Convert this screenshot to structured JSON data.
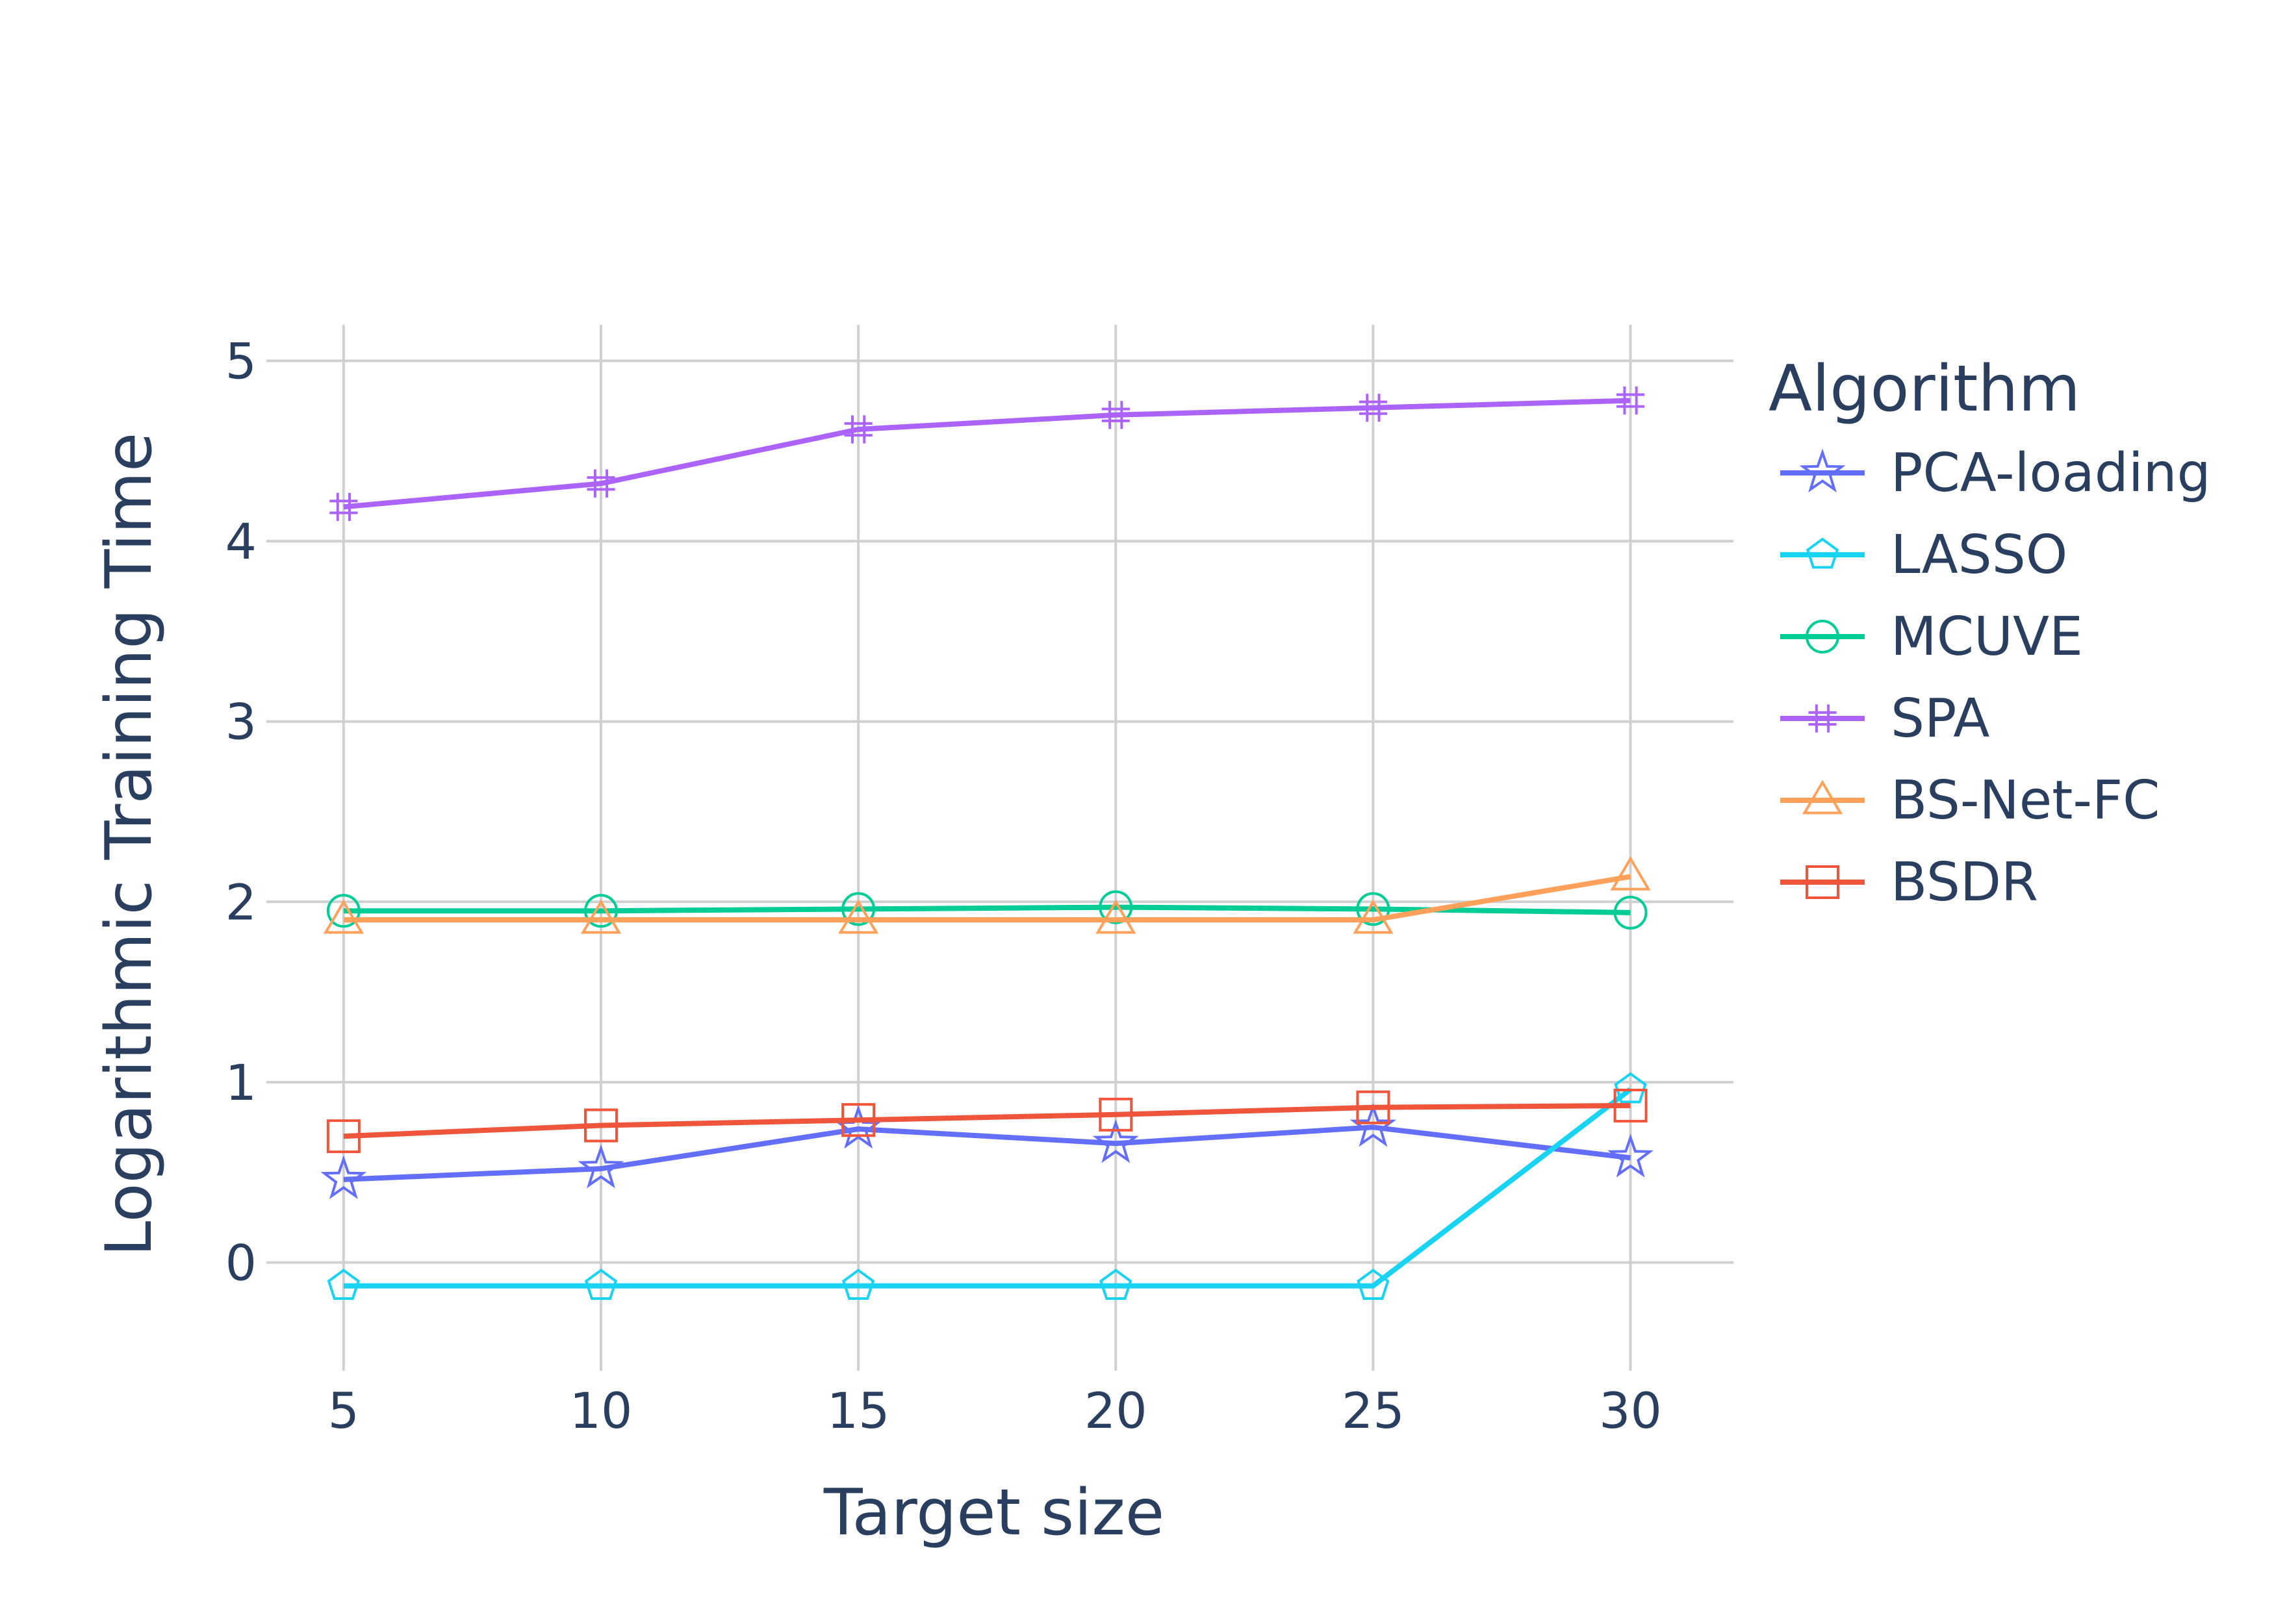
{
  "chart_data": {
    "type": "line",
    "title": "",
    "xlabel": "Target size",
    "ylabel": "Logarithmic Training Time",
    "x": [
      5,
      10,
      15,
      20,
      25,
      30
    ],
    "xticks": [
      "5",
      "10",
      "15",
      "20",
      "25",
      "30"
    ],
    "yticks": [
      "0",
      "1",
      "2",
      "3",
      "4",
      "5"
    ],
    "xlim": [
      3.5,
      32
    ],
    "ylim": [
      -0.6,
      5.2
    ],
    "grid": true,
    "legend": {
      "title": "Algorithm",
      "placement": "right"
    },
    "series": [
      {
        "name": "PCA-loading",
        "color": "#636efa",
        "marker": "star",
        "values": [
          0.46,
          0.52,
          0.74,
          0.66,
          0.75,
          0.58
        ]
      },
      {
        "name": "LASSO",
        "color": "#19d3f3",
        "marker": "pentagon",
        "values": [
          -0.13,
          -0.13,
          -0.13,
          -0.13,
          -0.13,
          0.96
        ]
      },
      {
        "name": "MCUVE",
        "color": "#00cc96",
        "marker": "circle",
        "values": [
          1.95,
          1.95,
          1.96,
          1.97,
          1.96,
          1.94
        ]
      },
      {
        "name": "SPA",
        "color": "#ab63fa",
        "marker": "hash",
        "values": [
          4.19,
          4.32,
          4.62,
          4.7,
          4.74,
          4.78
        ]
      },
      {
        "name": "BS-Net-FC",
        "color": "#ffa15a",
        "marker": "triangle",
        "values": [
          1.9,
          1.9,
          1.9,
          1.9,
          1.9,
          2.14
        ]
      },
      {
        "name": "BSDR",
        "color": "#ef553b",
        "marker": "square",
        "values": [
          0.7,
          0.76,
          0.79,
          0.82,
          0.86,
          0.87
        ]
      }
    ]
  }
}
